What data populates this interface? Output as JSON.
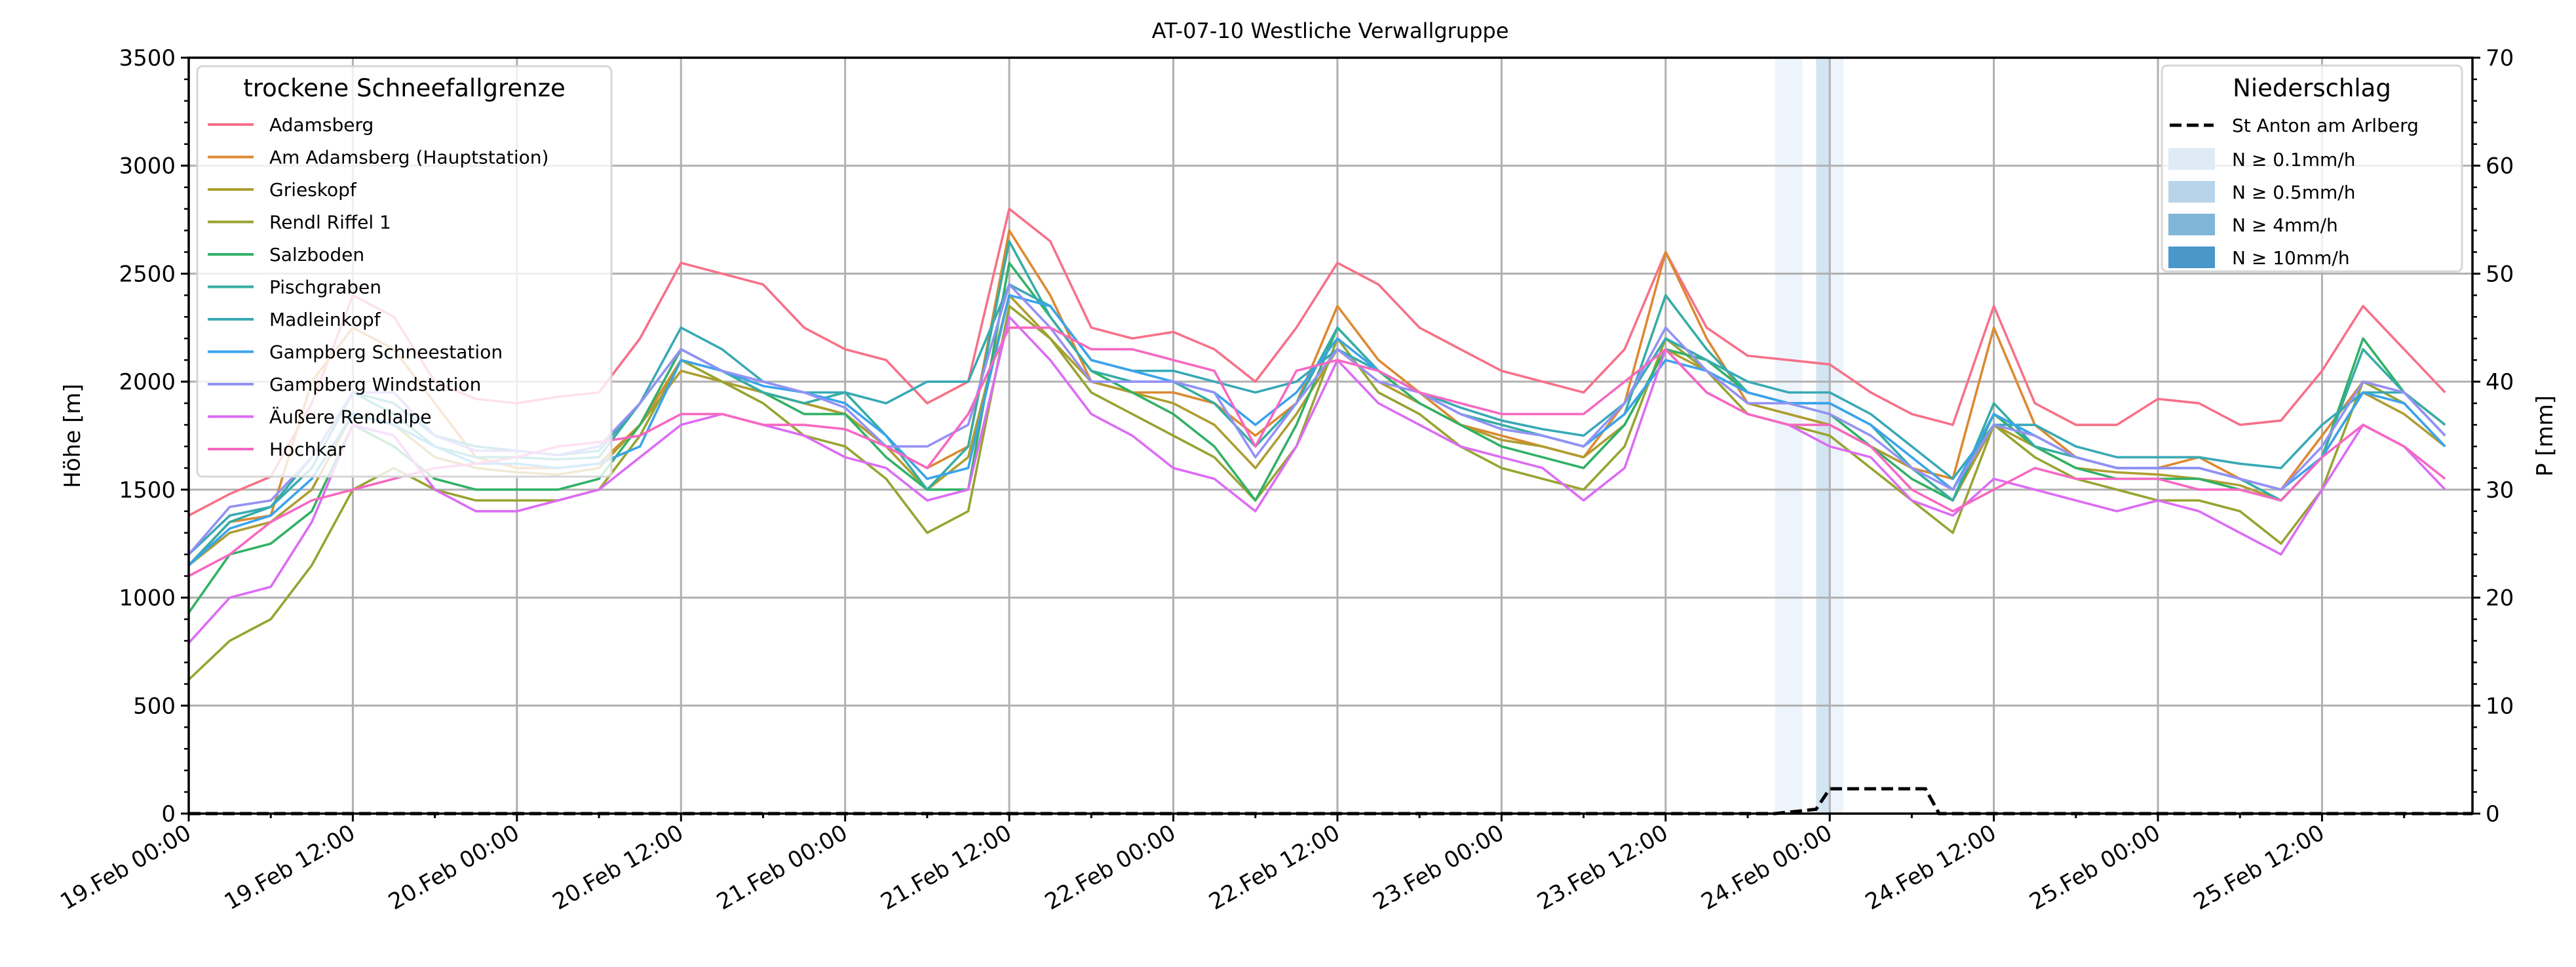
{
  "chart_data": {
    "type": "line",
    "title": "AT-07-10 Westliche Verwallgruppe",
    "ylabel": "Höhe [m]",
    "y2label": "P [mm]",
    "ylim": [
      0,
      3500
    ],
    "y2lim": [
      0,
      70
    ],
    "yticks": [
      0,
      500,
      1000,
      1500,
      2000,
      2500,
      3000,
      3500
    ],
    "y2ticks": [
      0,
      10,
      20,
      30,
      40,
      50,
      60,
      70
    ],
    "x_unit": "hours since 19.Feb 00:00",
    "xlim": [
      0,
      167
    ],
    "x_step_hours": 3,
    "xtick_labels": [
      "19.Feb 00:00",
      "19.Feb 12:00",
      "20.Feb 00:00",
      "20.Feb 12:00",
      "21.Feb 00:00",
      "21.Feb 12:00",
      "22.Feb 00:00",
      "22.Feb 12:00",
      "23.Feb 00:00",
      "23.Feb 12:00",
      "24.Feb 00:00",
      "24.Feb 12:00",
      "25.Feb 00:00",
      "25.Feb 12:00"
    ],
    "xtick_hours": [
      0,
      12,
      24,
      36,
      48,
      60,
      72,
      84,
      96,
      108,
      120,
      132,
      144,
      156
    ],
    "grid": true,
    "legend_title": "trockene Schneefallgrenze",
    "legend_position": "top-left",
    "series": [
      {
        "name": "Adamsberg",
        "color": "#f77189",
        "values": [
          1380,
          1480,
          1560,
          1900,
          2400,
          2300,
          2000,
          1920,
          1900,
          1930,
          1950,
          2200,
          2550,
          2500,
          2450,
          2250,
          2150,
          2100,
          1900,
          2000,
          2800,
          2650,
          2250,
          2200,
          2230,
          2150,
          2000,
          2250,
          2550,
          2450,
          2250,
          2150,
          2050,
          2000,
          1950,
          2150,
          2600,
          2250,
          2120,
          2100,
          2080,
          1950,
          1850,
          1800,
          2350,
          1900,
          1800,
          1800,
          1920,
          1900,
          1800,
          1820,
          2050,
          2350,
          2150,
          1950
        ]
      },
      {
        "name": "Am Adamsberg (Hauptstation)",
        "color": "#dc8932",
        "values": [
          1150,
          1350,
          1380,
          2000,
          2250,
          2150,
          1900,
          1650,
          1600,
          1600,
          1620,
          1800,
          2100,
          2050,
          1950,
          1900,
          1850,
          1700,
          1600,
          1700,
          2700,
          2400,
          2000,
          1950,
          1950,
          1900,
          1750,
          1900,
          2350,
          2100,
          1950,
          1800,
          1750,
          1700,
          1650,
          1900,
          2600,
          2200,
          1900,
          1850,
          1800,
          1700,
          1600,
          1550,
          2250,
          1800,
          1650,
          1600,
          1600,
          1650,
          1550,
          1500,
          1750,
          2000,
          1950,
          1800
        ]
      },
      {
        "name": "Grieskopf",
        "color": "#ae9d31",
        "values": [
          1150,
          1300,
          1350,
          1500,
          1850,
          1800,
          1650,
          1600,
          1580,
          1570,
          1600,
          1800,
          2050,
          2000,
          1950,
          1900,
          1850,
          1700,
          1500,
          1650,
          2400,
          2200,
          2000,
          1950,
          1900,
          1800,
          1600,
          1850,
          2150,
          2000,
          1900,
          1800,
          1730,
          1700,
          1650,
          1800,
          2150,
          2050,
          1900,
          1850,
          1800,
          1700,
          1600,
          1450,
          1800,
          1700,
          1600,
          1580,
          1570,
          1550,
          1520,
          1450,
          1650,
          1950,
          1850,
          1700
        ]
      },
      {
        "name": "Rendl Riffel 1",
        "color": "#97a431",
        "values": [
          620,
          800,
          900,
          1150,
          1500,
          1600,
          1500,
          1450,
          1450,
          1450,
          1500,
          1750,
          2100,
          2000,
          1900,
          1750,
          1700,
          1550,
          1300,
          1400,
          2350,
          2200,
          1950,
          1850,
          1750,
          1650,
          1450,
          1700,
          2200,
          1950,
          1850,
          1700,
          1600,
          1550,
          1500,
          1700,
          2200,
          2050,
          1850,
          1800,
          1750,
          1600,
          1450,
          1300,
          1800,
          1650,
          1550,
          1500,
          1450,
          1450,
          1400,
          1250,
          1500,
          2000,
          1900,
          1700
        ]
      },
      {
        "name": "Salzboden",
        "color": "#32b166",
        "values": [
          930,
          1200,
          1250,
          1400,
          1800,
          1700,
          1550,
          1500,
          1500,
          1500,
          1550,
          1800,
          2150,
          2050,
          1950,
          1850,
          1850,
          1650,
          1500,
          1500,
          2550,
          2300,
          2050,
          1950,
          1850,
          1700,
          1450,
          1800,
          2250,
          2050,
          1900,
          1800,
          1700,
          1650,
          1600,
          1800,
          2150,
          2100,
          1950,
          1900,
          1850,
          1700,
          1550,
          1450,
          1850,
          1700,
          1600,
          1550,
          1550,
          1550,
          1500,
          1450,
          1650,
          2200,
          1950,
          1750
        ]
      },
      {
        "name": "Pischgraben",
        "color": "#36ada4",
        "values": [
          1150,
          1350,
          1420,
          1650,
          1950,
          1850,
          1700,
          1650,
          1650,
          1640,
          1650,
          1900,
          2150,
          2050,
          1950,
          1900,
          1950,
          1750,
          1500,
          1700,
          2650,
          2300,
          2050,
          2000,
          2000,
          1900,
          1700,
          1900,
          2250,
          2050,
          1950,
          1850,
          1800,
          1750,
          1700,
          1850,
          2400,
          2150,
          1950,
          1900,
          1900,
          1800,
          1600,
          1450,
          1900,
          1700,
          1650,
          1600,
          1600,
          1600,
          1550,
          1450,
          1650,
          2150,
          1950,
          1800
        ]
      },
      {
        "name": "Madleinkopf",
        "color": "#38a9b5",
        "values": [
          1200,
          1380,
          1420,
          1600,
          1950,
          1900,
          1750,
          1700,
          1680,
          1660,
          1680,
          1900,
          2250,
          2150,
          2000,
          1950,
          1950,
          1900,
          2000,
          2000,
          2450,
          2350,
          2100,
          2050,
          2050,
          2000,
          1950,
          2000,
          2150,
          2050,
          1950,
          1880,
          1820,
          1780,
          1750,
          1900,
          2200,
          2100,
          2000,
          1950,
          1950,
          1850,
          1700,
          1550,
          1800,
          1800,
          1700,
          1650,
          1650,
          1650,
          1620,
          1600,
          1800,
          1950,
          1950,
          1750
        ]
      },
      {
        "name": "Gampberg Schneestation",
        "color": "#3ba3ec",
        "values": [
          1150,
          1320,
          1380,
          1550,
          1850,
          1800,
          1700,
          1620,
          1620,
          1600,
          1620,
          1700,
          2100,
          2050,
          1980,
          1950,
          1900,
          1750,
          1550,
          1600,
          2400,
          2350,
          2100,
          2050,
          2000,
          1950,
          1800,
          1950,
          2200,
          2050,
          1950,
          1850,
          1780,
          1750,
          1700,
          1850,
          2100,
          2050,
          1950,
          1900,
          1900,
          1800,
          1650,
          1500,
          1850,
          1750,
          1650,
          1600,
          1600,
          1600,
          1550,
          1500,
          1650,
          1950,
          1900,
          1700
        ]
      },
      {
        "name": "Gampberg Windstation",
        "color": "#9491f4",
        "values": [
          1200,
          1420,
          1450,
          1650,
          1950,
          1950,
          1750,
          1680,
          1680,
          1660,
          1700,
          1900,
          2150,
          2050,
          2000,
          1950,
          1880,
          1700,
          1700,
          1800,
          2450,
          2250,
          2000,
          2000,
          2000,
          1950,
          1650,
          1900,
          2150,
          2000,
          1950,
          1850,
          1780,
          1750,
          1700,
          1900,
          2250,
          2050,
          1900,
          1900,
          1850,
          1750,
          1600,
          1500,
          1800,
          1750,
          1650,
          1600,
          1600,
          1600,
          1550,
          1500,
          1700,
          2000,
          1950,
          1750
        ]
      },
      {
        "name": "Äußere Rendlalpe",
        "color": "#dc6cf4",
        "values": [
          790,
          1000,
          1050,
          1350,
          1800,
          1750,
          1500,
          1400,
          1400,
          1450,
          1500,
          1650,
          1800,
          1850,
          1800,
          1750,
          1650,
          1600,
          1450,
          1500,
          2300,
          2100,
          1850,
          1750,
          1600,
          1550,
          1400,
          1700,
          2100,
          1900,
          1800,
          1700,
          1650,
          1600,
          1450,
          1600,
          2150,
          1950,
          1850,
          1800,
          1700,
          1650,
          1450,
          1380,
          1550,
          1500,
          1450,
          1400,
          1450,
          1400,
          1300,
          1200,
          1500,
          1800,
          1700,
          1500
        ]
      },
      {
        "name": "Hochkar",
        "color": "#f668c2",
        "values": [
          1100,
          1200,
          1350,
          1450,
          1500,
          1550,
          1600,
          1620,
          1650,
          1700,
          1720,
          1750,
          1850,
          1850,
          1800,
          1800,
          1780,
          1700,
          1600,
          1850,
          2250,
          2250,
          2150,
          2150,
          2100,
          2050,
          1700,
          2050,
          2100,
          2050,
          1950,
          1900,
          1850,
          1850,
          1850,
          2000,
          2150,
          1950,
          1850,
          1800,
          1800,
          1700,
          1500,
          1400,
          1500,
          1600,
          1550,
          1550,
          1550,
          1500,
          1500,
          1450,
          1650,
          1800,
          1700,
          1550
        ]
      }
    ],
    "precipitation": {
      "legend_title": "Niederschlag",
      "legend_position": "top-right",
      "station": "St Anton am Arlberg",
      "points": [
        [
          0,
          0
        ],
        [
          112,
          0
        ],
        [
          116,
          0
        ],
        [
          119,
          0.4
        ],
        [
          120,
          2.3
        ],
        [
          127,
          2.3
        ],
        [
          128,
          0
        ],
        [
          167,
          0
        ]
      ],
      "intensity_classes": [
        {
          "label": "N ≥ 0.1mm/h",
          "color": "#deebf7"
        },
        {
          "label": "N ≥ 0.5mm/h",
          "color": "#b8d4ea"
        },
        {
          "label": "N ≥ 4mm/h",
          "color": "#80b6d8"
        },
        {
          "label": "N ≥ 10mm/h",
          "color": "#4a97c9"
        }
      ],
      "intensity_spans": [
        {
          "start": 116,
          "end": 118,
          "class": 0
        },
        {
          "start": 119,
          "end": 120,
          "class": 1
        },
        {
          "start": 120,
          "end": 121,
          "class": 0
        }
      ]
    }
  }
}
